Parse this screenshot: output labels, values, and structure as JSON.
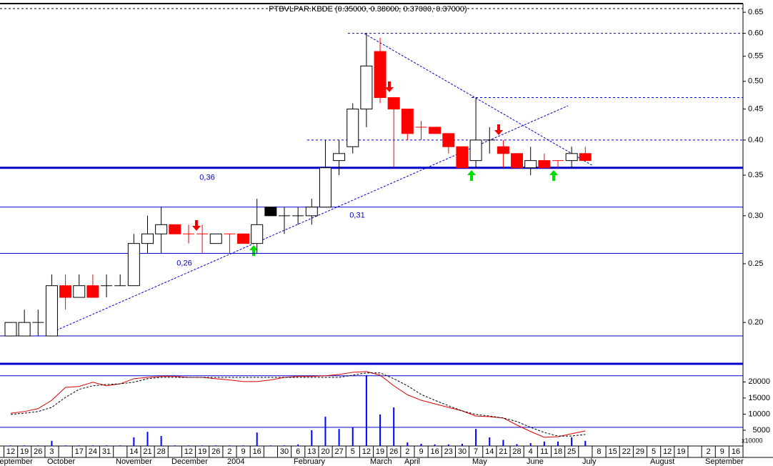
{
  "chart_data": [
    {
      "type": "candlestick",
      "title": "PTBVLPAR.KBDE (0.35000, 0.38000, 0.37000, 0.37000)",
      "categories": [
        "12",
        "19",
        "26",
        "3",
        null,
        "17",
        "24",
        "31",
        null,
        "14",
        "21",
        "28",
        null,
        "12",
        "19",
        "26",
        "2",
        "9",
        "16",
        null,
        "30",
        "6",
        "13",
        "20",
        "27",
        "5",
        "12",
        "19",
        "26",
        "2",
        "9",
        "16",
        "23",
        "30",
        "7",
        "14",
        "21",
        "28",
        "4",
        "11",
        "18",
        "25",
        null,
        "8",
        "15",
        "22",
        "29",
        "5",
        "12",
        "19",
        null,
        "2",
        "9",
        "16"
      ],
      "months": [
        "September",
        "October",
        "November",
        "December",
        "2004",
        "February",
        "March",
        "April",
        "May",
        "June",
        "July",
        "August",
        "September"
      ],
      "open": [
        0.19,
        0.19,
        0.2,
        0.19,
        0.23,
        0.22,
        0.23,
        0.23,
        0.23,
        0.23,
        0.27,
        0.28,
        0.29,
        0.28,
        0.28,
        0.27,
        0.28,
        0.28,
        0.27,
        0.31,
        0.3,
        0.3,
        0.3,
        0.31,
        0.37,
        0.39,
        0.45,
        0.56,
        0.47,
        0.45,
        0.42,
        0.42,
        0.41,
        0.39,
        0.37,
        0.4,
        0.39,
        0.38,
        0.36,
        0.37,
        0.37,
        0.37,
        0.38,
        null,
        null,
        null,
        null,
        null,
        null,
        null,
        null,
        null,
        null,
        null
      ],
      "high": [
        0.2,
        0.21,
        0.21,
        0.24,
        0.24,
        0.24,
        0.24,
        0.24,
        0.24,
        0.28,
        0.3,
        0.31,
        0.29,
        0.29,
        0.29,
        0.28,
        0.28,
        0.28,
        0.32,
        0.31,
        0.31,
        0.31,
        0.32,
        0.4,
        0.4,
        0.46,
        0.6,
        0.59,
        0.47,
        0.45,
        0.43,
        0.42,
        0.41,
        0.39,
        0.47,
        0.42,
        0.4,
        0.38,
        0.39,
        0.38,
        0.37,
        0.39,
        0.39,
        null,
        null,
        null,
        null,
        null,
        null,
        null,
        null,
        null,
        null,
        null
      ],
      "low": [
        0.19,
        0.19,
        0.19,
        0.19,
        0.21,
        0.22,
        0.22,
        0.22,
        0.23,
        0.23,
        0.26,
        0.26,
        0.28,
        0.27,
        0.26,
        0.27,
        0.26,
        0.27,
        0.26,
        0.3,
        0.28,
        0.29,
        0.29,
        0.31,
        0.35,
        0.38,
        0.42,
        0.46,
        0.36,
        0.4,
        0.4,
        0.41,
        0.38,
        0.36,
        0.36,
        0.38,
        0.36,
        0.36,
        0.35,
        0.36,
        0.36,
        0.36,
        0.37,
        null,
        null,
        null,
        null,
        null,
        null,
        null,
        null,
        null,
        null,
        null
      ],
      "close": [
        0.2,
        0.2,
        0.2,
        0.23,
        0.22,
        0.23,
        0.22,
        0.23,
        0.23,
        0.27,
        0.28,
        0.29,
        0.28,
        0.28,
        0.28,
        0.28,
        0.28,
        0.27,
        0.29,
        0.3,
        0.3,
        0.3,
        0.31,
        0.36,
        0.38,
        0.45,
        0.53,
        0.47,
        0.45,
        0.41,
        0.42,
        0.41,
        0.39,
        0.36,
        0.4,
        0.4,
        0.38,
        0.36,
        0.37,
        0.36,
        0.37,
        0.38,
        0.37,
        null,
        null,
        null,
        null,
        null,
        null,
        null,
        null,
        null,
        null,
        null
      ],
      "colors": [
        "#ffffff",
        "#ffffff",
        "#ffffff",
        "#ffffff",
        "#ff0000",
        "#ffffff",
        "#ff0000",
        "#ffffff",
        "#ffffff",
        "#ffffff",
        "#ffffff",
        "#ffffff",
        "#ff0000",
        "#ff0000",
        "#ff0000",
        "#ffffff",
        "#ff0000",
        "#ff0000",
        "#ffffff",
        "#000000",
        "#ffffff",
        "#ffffff",
        "#ffffff",
        "#ffffff",
        "#ffffff",
        "#ffffff",
        "#ffffff",
        "#ff0000",
        "#ff0000",
        "#ff0000",
        "#ff0000",
        "#ff0000",
        "#ff0000",
        "#ff0000",
        "#ffffff",
        "#ffffff",
        "#ff0000",
        "#ff0000",
        "#ffffff",
        "#ff0000",
        "#ff0000",
        "#ffffff",
        "#ff0000",
        null,
        null,
        null,
        null,
        null,
        null,
        null,
        null,
        null,
        null,
        null
      ],
      "log_scale": true,
      "ylim": [
        0.17,
        0.67
      ],
      "yticks": [
        {
          "value": 0.2,
          "label": "0.20"
        },
        0.25,
        {
          "value": 0.3,
          "label": "0.30"
        },
        0.35,
        {
          "value": 0.4,
          "label": "0.40"
        },
        0.45,
        {
          "value": 0.5,
          "label": "0.50"
        },
        0.55,
        {
          "value": 0.6,
          "label": "0.60"
        },
        0.65
      ],
      "hlines": [
        {
          "value": 0.36,
          "color": "#0000cc"
        },
        {
          "value": 0.31,
          "color": "#0000cc"
        },
        {
          "value": 0.26,
          "color": "#0000cc"
        },
        {
          "value": 0.19,
          "color": "#0000cc"
        },
        {
          "value": 0.6,
          "color": "#0000cc"
        },
        {
          "value": 0.47,
          "color": "#0000cc"
        },
        {
          "value": 0.4,
          "color": "#0000cc"
        }
      ],
      "annotations": [
        {
          "text": "0,36",
          "value": 0.36
        },
        {
          "text": "0,31",
          "value": 0.31
        },
        {
          "text": "0,26",
          "value": 0.26
        }
      ]
    },
    {
      "type": "bar",
      "unit_label": "x10000",
      "ylim": [
        0,
        25400
      ],
      "yticks": [
        5000,
        10000,
        15000,
        20000
      ],
      "hlines": [
        {
          "value": 5900,
          "color": "#0000cc"
        },
        {
          "value": 21900,
          "color": "#0000cc"
        }
      ],
      "series": [
        {
          "color": "#0000ff",
          "style": "bar",
          "values": [
            300,
            300,
            300,
            1700,
            300,
            300,
            300,
            300,
            300,
            2800,
            4500,
            3200,
            300,
            300,
            300,
            300,
            300,
            300,
            4300,
            300,
            300,
            600,
            5000,
            9200,
            5400,
            5900,
            22100,
            9900,
            12100,
            1200,
            800,
            600,
            600,
            800,
            5400,
            2800,
            2000,
            700,
            1000,
            1500,
            1500,
            2800,
            1700,
            null,
            null,
            null,
            null,
            null,
            null,
            null,
            null,
            null,
            null,
            null
          ]
        },
        {
          "color": "#dd0000",
          "style": "line",
          "values": [
            10300,
            10800,
            11700,
            14300,
            18300,
            18600,
            19900,
            18800,
            19400,
            21000,
            21400,
            21700,
            21700,
            21400,
            21400,
            21000,
            20600,
            20100,
            20100,
            20600,
            21400,
            21700,
            21700,
            21900,
            22300,
            23000,
            23200,
            22100,
            18800,
            16000,
            14300,
            13200,
            12100,
            11000,
            9400,
            9200,
            8800,
            6600,
            4600,
            2800,
            3000,
            3900,
            4800,
            null,
            null,
            null,
            null,
            null,
            null,
            null,
            null,
            null,
            null,
            null
          ]
        },
        {
          "color": "#000000",
          "style": "dashed",
          "values": [
            9900,
            10300,
            10800,
            12100,
            15200,
            17700,
            18800,
            19200,
            19400,
            19900,
            21000,
            21400,
            21400,
            21400,
            21400,
            21400,
            21400,
            21400,
            21400,
            21400,
            21400,
            21400,
            21400,
            21400,
            21400,
            22100,
            22800,
            22800,
            21000,
            18800,
            16100,
            14300,
            12600,
            11000,
            9900,
            9400,
            8800,
            7700,
            5900,
            4300,
            3200,
            3200,
            3700,
            null,
            null,
            null,
            null,
            null,
            null,
            null,
            null,
            null,
            null,
            null
          ]
        }
      ]
    }
  ]
}
